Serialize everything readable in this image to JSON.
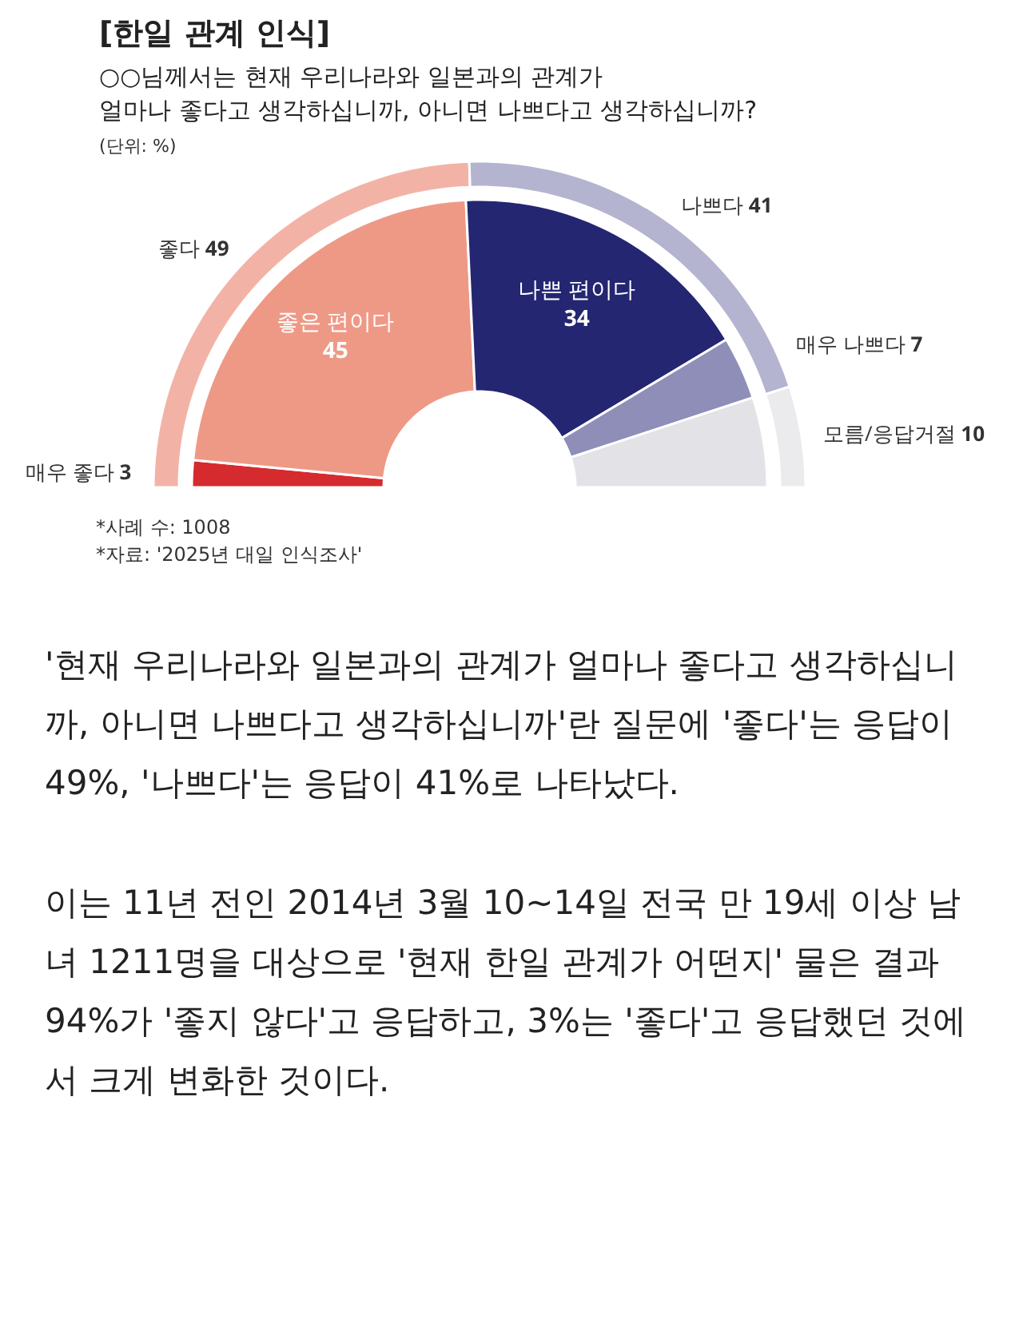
{
  "chart_data": [
    {
      "type": "donut",
      "title": "[한일 관계 인식]",
      "subtitle": "○○님께서는 현재 우리나라와 일본과의 관계가\n얼마나 좋다고 생각하십니까, 아니면 나쁘다고 생각하십니까?",
      "annotations": [
        "(단위: %)",
        "*사례 수: 1008",
        "*자료: '2025년 대일 인식조사'",
        "'현재 우리나라와 일본과의 관계가 얼마나 좋다고 생각하십니까, 아니면 나쁘다고 생각하십니까'란 질문에 '좋다'는 응답이 49%, '나쁘다'는 응답이 41%로 나타났다.",
        "이는 11년 전인 2014년 3월 10~14일 전국 만 19세 이상 남녀 1211명을 대상으로 '현재 한일 관계가 어떤지' 물은 결과 94%가 '좋지 않다'고 응답하고, 3%는 '좋다'고 응답했던 것에서 크게 변화한 것이다."
      ],
      "categories": [
        "좋다",
        "나쁘다",
        null
      ],
      "values": [
        49,
        41,
        10
      ],
      "colors": [
        "#f2b3a6",
        "#b4b4d0",
        "#ebebee"
      ],
      "value_labels": [
        "49",
        "41",
        null
      ]
    },
    {
      "type": "donut",
      "categories": [
        "매우 좋다",
        "좋은 편이다",
        "나쁜 편이다",
        "매우 나쁘다",
        "모름/응답거절"
      ],
      "values": [
        3,
        45,
        34,
        7,
        10
      ],
      "colors": [
        "#d52a2e",
        "#ee9986",
        "#242672",
        "#8e8eb9",
        "#e3e3e7"
      ],
      "data_labels": true
    }
  ]
}
